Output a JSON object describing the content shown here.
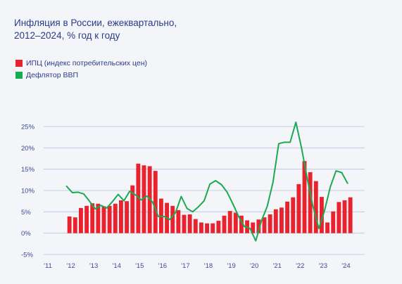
{
  "title_lines": [
    "Инфляция в России, ежеквартально,",
    "2012–2024, % год к году"
  ],
  "chart_data": {
    "type": "bar",
    "y_ticks": [
      {
        "label": "25%",
        "value": 25
      },
      {
        "label": "20%",
        "value": 20
      },
      {
        "label": "15%",
        "value": 15
      },
      {
        "label": "10%",
        "value": 10
      },
      {
        "label": "5%",
        "value": 5
      },
      {
        "label": "0%",
        "value": 0
      },
      {
        "label": "-5%",
        "value": -5
      }
    ],
    "ylim": [
      -5,
      25
    ],
    "x_ticks": [
      "'11",
      "'12",
      "'13",
      "'14",
      "'15",
      "'16",
      "'17",
      "'18",
      "'19",
      "'20",
      "'21",
      "'22",
      "'23",
      "'24"
    ],
    "x_range": [
      2011.0,
      2025.0
    ],
    "x_tick_positions": [
      2011,
      2012,
      2013,
      2014,
      2015,
      2016,
      2017,
      2018,
      2019,
      2020,
      2021,
      2022,
      2023,
      2024
    ],
    "grid": true,
    "legend_position": "top-left",
    "series": [
      {
        "name": "ИПЦ (индекс потребительских цен)",
        "type": "bar",
        "color": "#e8232e",
        "x_start": 2012.0,
        "step": 0.25,
        "values": [
          3.9,
          3.7,
          5.9,
          6.4,
          7.0,
          6.9,
          6.3,
          6.4,
          6.9,
          7.7,
          7.5,
          11.2,
          16.3,
          15.9,
          15.7,
          14.6,
          8.1,
          7.1,
          6.4,
          5.4,
          4.3,
          4.4,
          3.3,
          2.5,
          2.3,
          2.3,
          2.9,
          4.1,
          5.2,
          4.8,
          4.1,
          3.0,
          2.5,
          3.2,
          3.7,
          4.4,
          5.6,
          6.0,
          7.4,
          8.4,
          11.5,
          16.9,
          14.3,
          12.2,
          8.5,
          2.5,
          5.1,
          7.3,
          7.7,
          8.4
        ]
      },
      {
        "name": "Дефлятор ВВП",
        "type": "line",
        "color": "#1aaa52",
        "points": [
          [
            2012.0,
            11.0
          ],
          [
            2012.25,
            9.5
          ],
          [
            2012.5,
            9.6
          ],
          [
            2012.75,
            9.2
          ],
          [
            2013.0,
            7.5
          ],
          [
            2013.25,
            5.7
          ],
          [
            2013.5,
            6.5
          ],
          [
            2013.75,
            5.9
          ],
          [
            2014.0,
            7.4
          ],
          [
            2014.25,
            9.1
          ],
          [
            2014.5,
            7.6
          ],
          [
            2014.75,
            9.8
          ],
          [
            2015.0,
            9.0
          ],
          [
            2015.25,
            7.8
          ],
          [
            2015.5,
            8.7
          ],
          [
            2015.75,
            7.3
          ],
          [
            2016.0,
            3.9
          ],
          [
            2016.25,
            3.9
          ],
          [
            2016.5,
            3.2
          ],
          [
            2016.75,
            4.8
          ],
          [
            2017.0,
            8.6
          ],
          [
            2017.25,
            5.8
          ],
          [
            2017.5,
            5.0
          ],
          [
            2017.75,
            6.2
          ],
          [
            2018.0,
            7.6
          ],
          [
            2018.25,
            11.5
          ],
          [
            2018.5,
            12.3
          ],
          [
            2018.75,
            11.4
          ],
          [
            2019.0,
            9.6
          ],
          [
            2019.25,
            6.9
          ],
          [
            2019.5,
            3.9
          ],
          [
            2019.75,
            1.6
          ],
          [
            2020.0,
            1.1
          ],
          [
            2020.25,
            -1.8
          ],
          [
            2020.5,
            2.9
          ],
          [
            2020.75,
            6.3
          ],
          [
            2021.0,
            11.9
          ],
          [
            2021.25,
            21.0
          ],
          [
            2021.5,
            21.3
          ],
          [
            2021.75,
            21.3
          ],
          [
            2022.0,
            26.0
          ],
          [
            2022.25,
            19.9
          ],
          [
            2022.5,
            12.6
          ],
          [
            2022.75,
            6.2
          ],
          [
            2023.0,
            1.1
          ],
          [
            2023.25,
            5.3
          ],
          [
            2023.5,
            10.8
          ],
          [
            2023.75,
            14.6
          ],
          [
            2024.0,
            14.2
          ],
          [
            2024.25,
            11.7
          ]
        ]
      }
    ]
  }
}
